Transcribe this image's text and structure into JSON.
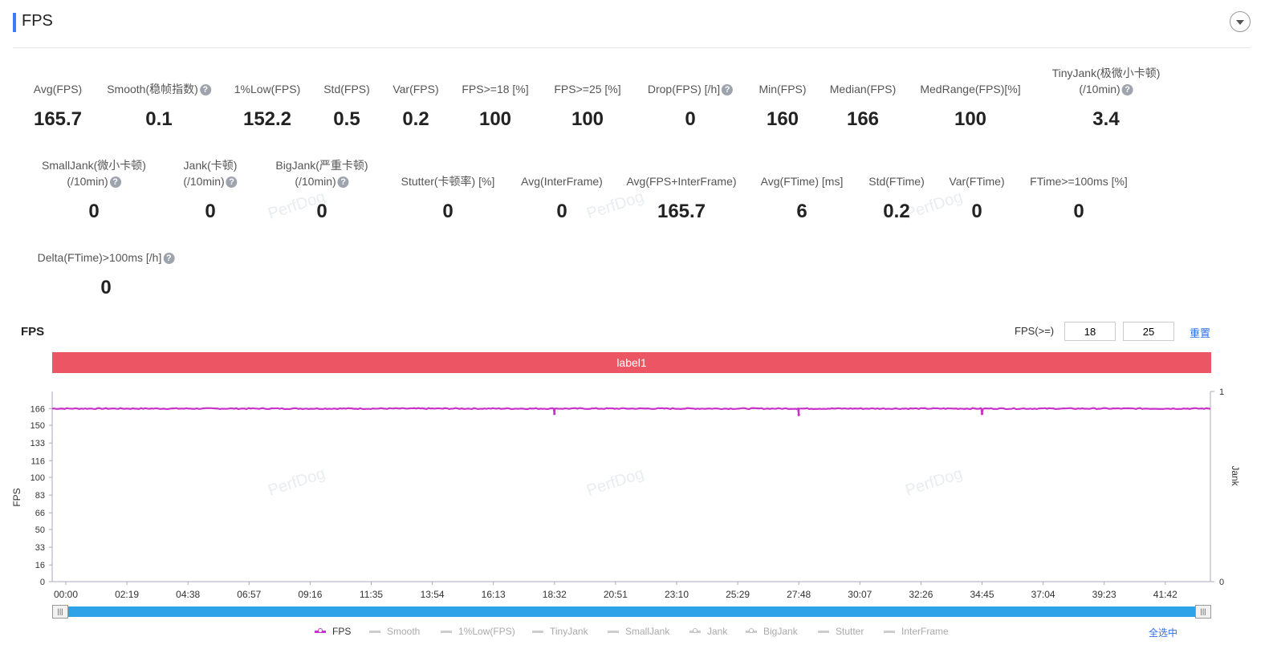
{
  "page": {
    "title": "FPS",
    "watermark": "PerfDog"
  },
  "metrics_row1": [
    {
      "label": "Avg(FPS)",
      "value": "165.7",
      "help": false
    },
    {
      "label": "Smooth(稳帧指数)",
      "value": "0.1",
      "help": true
    },
    {
      "label": "1%Low(FPS)",
      "value": "152.2",
      "help": false
    },
    {
      "label": "Std(FPS)",
      "value": "0.5",
      "help": false
    },
    {
      "label": "Var(FPS)",
      "value": "0.2",
      "help": false
    },
    {
      "label": "FPS>=18 [%]",
      "value": "100",
      "help": false
    },
    {
      "label": "FPS>=25 [%]",
      "value": "100",
      "help": false
    },
    {
      "label": "Drop(FPS) [/h]",
      "value": "0",
      "help": true
    },
    {
      "label": "Min(FPS)",
      "value": "160",
      "help": false
    },
    {
      "label": "Median(FPS)",
      "value": "166",
      "help": false
    },
    {
      "label": "MedRange(FPS)[%]",
      "value": "100",
      "help": false
    },
    {
      "label": "TinyJank(极微小卡顿)",
      "label2": "(/10min)",
      "value": "3.4",
      "help": true
    }
  ],
  "metrics_row2": [
    {
      "label": "SmallJank(微小卡顿)",
      "label2": "(/10min)",
      "value": "0",
      "help": true
    },
    {
      "label": "Jank(卡顿)",
      "label2": "(/10min)",
      "value": "0",
      "help": true
    },
    {
      "label": "BigJank(严重卡顿)",
      "label2": "(/10min)",
      "value": "0",
      "help": true
    },
    {
      "label": "Stutter(卡顿率) [%]",
      "value": "0",
      "help": false
    },
    {
      "label": "Avg(InterFrame)",
      "value": "0",
      "help": false
    },
    {
      "label": "Avg(FPS+InterFrame)",
      "value": "165.7",
      "help": false
    },
    {
      "label": "Avg(FTime) [ms]",
      "value": "6",
      "help": false
    },
    {
      "label": "Std(FTime)",
      "value": "0.2",
      "help": false
    },
    {
      "label": "Var(FTime)",
      "value": "0",
      "help": false
    },
    {
      "label": "FTime>=100ms [%]",
      "value": "0",
      "help": false
    }
  ],
  "metrics_row3": [
    {
      "label": "Delta(FTime)>100ms [/h]",
      "value": "0",
      "help": true
    }
  ],
  "chart_section": {
    "title": "FPS",
    "threshold_label": "FPS(>=)",
    "threshold1": "18",
    "threshold2": "25",
    "reset_label": "重置",
    "label_bar": "label1",
    "select_all_label": "全选中",
    "help_glyph": "?",
    "slider_handle_glyph": "|||"
  },
  "chart_data": {
    "type": "line",
    "ylabel": "FPS",
    "y2label": "Jank",
    "yticks": [
      "0",
      "16",
      "33",
      "50",
      "66",
      "83",
      "100",
      "116",
      "133",
      "150",
      "166"
    ],
    "ytick_values": [
      0,
      16,
      33,
      50,
      66,
      83,
      100,
      116,
      133,
      150,
      166
    ],
    "y2ticks": [
      "0",
      "1"
    ],
    "ylim": [
      0,
      177
    ],
    "xticks": [
      "00:00",
      "02:19",
      "04:38",
      "06:57",
      "09:16",
      "11:35",
      "13:54",
      "16:13",
      "18:32",
      "20:51",
      "23:10",
      "25:29",
      "27:48",
      "30:07",
      "32:26",
      "34:45",
      "37:04",
      "39:23",
      "41:42"
    ],
    "series": [
      {
        "name": "FPS",
        "color": "#c832c8",
        "baseline": 166,
        "dips": [
          {
            "x": "18:32",
            "y": 161
          },
          {
            "x": "27:48",
            "y": 160
          },
          {
            "x": "34:45",
            "y": 161
          }
        ]
      }
    ],
    "legend": [
      "FPS",
      "Smooth",
      "1%Low(FPS)",
      "TinyJank",
      "SmallJank",
      "Jank",
      "BigJank",
      "Stutter",
      "InterFrame"
    ]
  }
}
